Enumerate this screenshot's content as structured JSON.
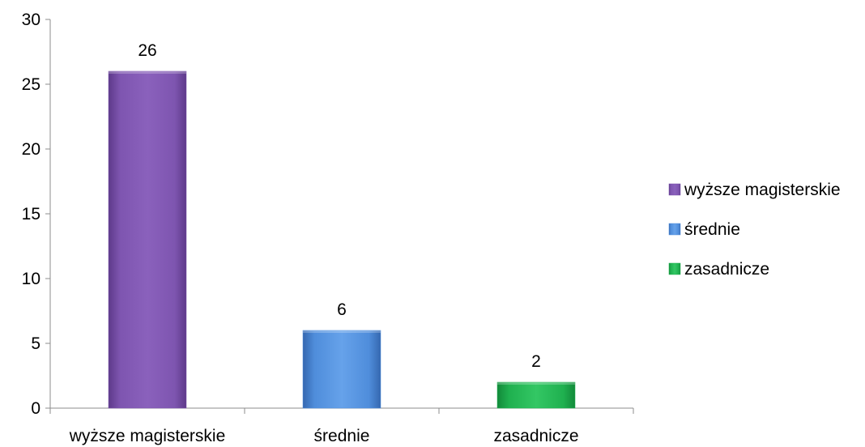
{
  "chart_data": {
    "type": "bar",
    "categories": [
      "wyższe magisterskie",
      "średnie",
      "zasadnicze"
    ],
    "values": [
      26,
      6,
      2
    ],
    "ylim": [
      0,
      30
    ],
    "yticks": [
      0,
      5,
      10,
      15,
      20,
      25,
      30
    ],
    "grid": false,
    "legend": {
      "placement": "right",
      "entries": [
        "wyższe magisterskie",
        "średnie",
        "zasadnicze"
      ]
    },
    "colors": [
      "#7B52AB",
      "#4F8DDB",
      "#1FB04F"
    ]
  }
}
